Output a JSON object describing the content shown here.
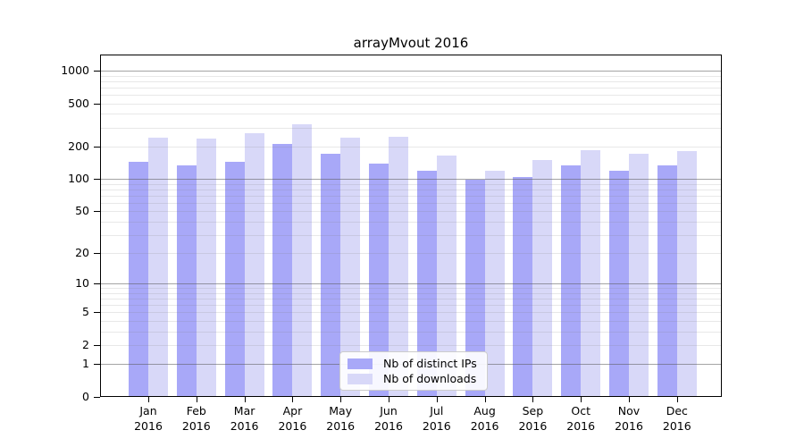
{
  "title": "arrayMvout 2016",
  "colors": {
    "ips_bar": "#a8a8f8",
    "downloads_bar": "#d8d8f8",
    "axis": "#000000",
    "grid_major": "#b0b0b0",
    "grid_minor": "#e8e8e8",
    "legend_border": "#cccccc",
    "legend_bg": "#ffffff"
  },
  "legend": {
    "items": [
      {
        "key": "ips",
        "label": "Nb of distinct IPs"
      },
      {
        "key": "downloads",
        "label": "Nb of downloads"
      }
    ]
  },
  "y_axis": {
    "tick_labels": [
      "0",
      "1",
      "2",
      "5",
      "10",
      "20",
      "50",
      "100",
      "200",
      "500",
      "1000"
    ],
    "tick_values": [
      0,
      1,
      2,
      5,
      10,
      20,
      50,
      100,
      200,
      500,
      1000
    ]
  },
  "x_axis": {
    "year_line": "2016",
    "months": [
      "Jan",
      "Feb",
      "Mar",
      "Apr",
      "May",
      "Jun",
      "Jul",
      "Aug",
      "Sep",
      "Oct",
      "Nov",
      "Dec"
    ]
  },
  "chart_data": {
    "type": "bar",
    "title": "arrayMvout 2016",
    "categories": [
      "Jan 2016",
      "Feb 2016",
      "Mar 2016",
      "Apr 2016",
      "May 2016",
      "Jun 2016",
      "Jul 2016",
      "Aug 2016",
      "Sep 2016",
      "Oct 2016",
      "Nov 2016",
      "Dec 2016"
    ],
    "series": [
      {
        "name": "Nb of distinct IPs",
        "key": "ips",
        "values": [
          145,
          135,
          145,
          210,
          170,
          140,
          120,
          98,
          105,
          135,
          120,
          135
        ]
      },
      {
        "name": "Nb of downloads",
        "key": "downloads",
        "values": [
          242,
          238,
          265,
          320,
          242,
          245,
          165,
          120,
          150,
          185,
          170,
          180
        ]
      }
    ],
    "xlabel": "",
    "ylabel": "",
    "yscale": "log1p",
    "ylim": [
      0,
      1400
    ],
    "yticks": [
      0,
      1,
      2,
      5,
      10,
      20,
      50,
      100,
      200,
      500,
      1000
    ],
    "grid": true,
    "legend_position": "lower center"
  }
}
